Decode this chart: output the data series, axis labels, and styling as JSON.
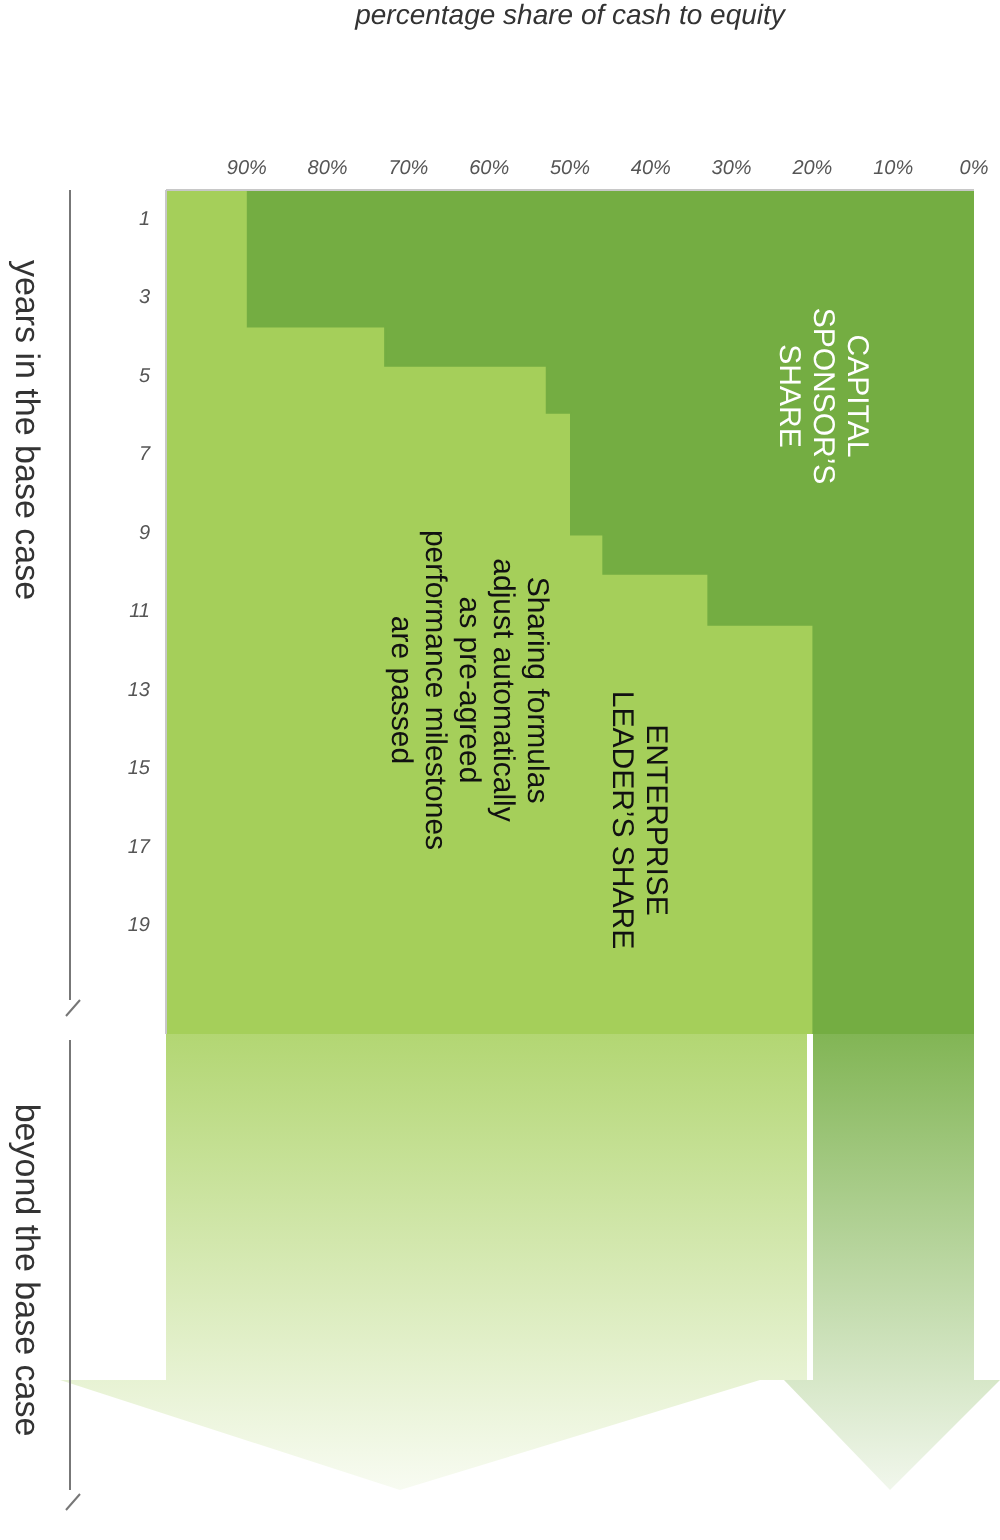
{
  "chart_data": {
    "type": "area",
    "stacked": true,
    "orientation": "horizontal",
    "ylabel": "years in the base case",
    "xlabel": "percentage share of cash to equity",
    "x": [
      0.3,
      3.8,
      3.8,
      4.8,
      4.8,
      6,
      6,
      9.1,
      9.1,
      10.1,
      10.1,
      11.4,
      11.4,
      21.8
    ],
    "ylim": [
      21.8,
      0.3
    ],
    "yticks": [
      1,
      3,
      5,
      7,
      9,
      11,
      13,
      15,
      17,
      19
    ],
    "xlim": [
      100,
      0
    ],
    "xticks": [
      {
        "value": 0,
        "label": "0%"
      },
      {
        "value": 10,
        "label": "10%"
      },
      {
        "value": 20,
        "label": "20%"
      },
      {
        "value": 30,
        "label": "30%"
      },
      {
        "value": 40,
        "label": "40%"
      },
      {
        "value": 50,
        "label": "50%"
      },
      {
        "value": 60,
        "label": "60%"
      },
      {
        "value": 70,
        "label": "70%"
      },
      {
        "value": 80,
        "label": "80%"
      },
      {
        "value": 90,
        "label": "90%"
      }
    ],
    "series": [
      {
        "name": "CAPITAL SPONSOR’S SHARE",
        "color": "#74ad42",
        "values": [
          90,
          90,
          73,
          73,
          53,
          53,
          50,
          50,
          46,
          46,
          33,
          33,
          20,
          20
        ]
      },
      {
        "name": "ENTERPRISE LEADER’S SHARE",
        "color": "#a5cf5a",
        "values": [
          10,
          10,
          27,
          27,
          47,
          47,
          50,
          50,
          54,
          54,
          67,
          67,
          80,
          80
        ]
      }
    ],
    "annotations": [
      "Sharing formulas adjust automatically as pre-agreed performance milestones are passed",
      "beyond the base case"
    ],
    "legend": false,
    "grid": false
  }
}
